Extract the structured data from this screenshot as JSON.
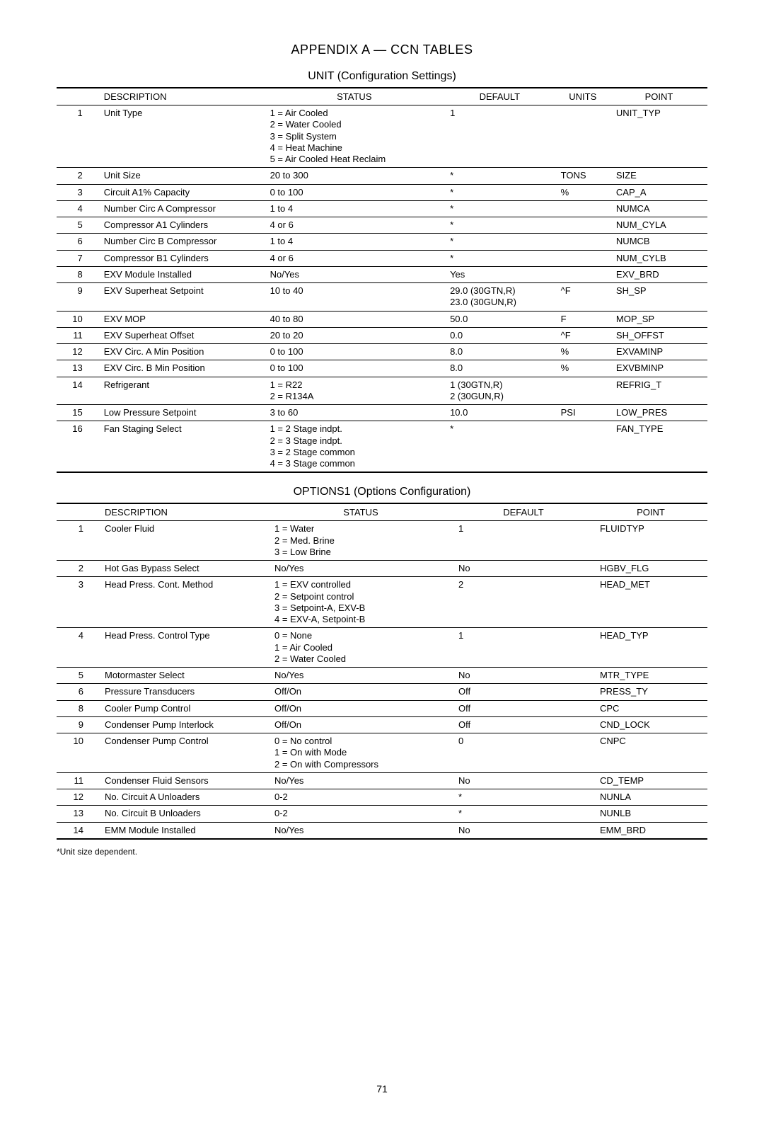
{
  "page_title": "APPENDIX A — CCN TABLES",
  "page_number": "71",
  "footnote": "*Unit size dependent.",
  "table1": {
    "title": "UNIT (Configuration Settings)",
    "headers": {
      "idx": "",
      "desc": "DESCRIPTION",
      "status": "STATUS",
      "def": "DEFAULT",
      "units": "UNITS",
      "point": "POINT"
    },
    "rows": [
      {
        "idx": "1",
        "desc": "Unit Type",
        "status": "1 = Air Cooled\n2 = Water Cooled\n3 = Split System\n4 = Heat Machine\n5 = Air Cooled Heat Reclaim",
        "def": "1",
        "units": "",
        "point": "UNIT_TYP"
      },
      {
        "idx": "2",
        "desc": "Unit Size",
        "status": "20 to 300",
        "def": "*",
        "units": "TONS",
        "point": "SIZE"
      },
      {
        "idx": "3",
        "desc": "Circuit A1% Capacity",
        "status": "0 to 100",
        "def": "*",
        "units": "%",
        "point": "CAP_A"
      },
      {
        "idx": "4",
        "desc": "Number Circ A Compressor",
        "status": "1 to 4",
        "def": "*",
        "units": "",
        "point": "NUMCA"
      },
      {
        "idx": "5",
        "desc": "Compressor A1 Cylinders",
        "status": "4 or 6",
        "def": "*",
        "units": "",
        "point": "NUM_CYLA"
      },
      {
        "idx": "6",
        "desc": "Number Circ B Compressor",
        "status": "1 to 4",
        "def": "*",
        "units": "",
        "point": "NUMCB"
      },
      {
        "idx": "7",
        "desc": "Compressor B1 Cylinders",
        "status": "4 or 6",
        "def": "*",
        "units": "",
        "point": "NUM_CYLB"
      },
      {
        "idx": "8",
        "desc": "EXV Module Installed",
        "status": "No/Yes",
        "def": "Yes",
        "units": "",
        "point": "EXV_BRD"
      },
      {
        "idx": "9",
        "desc": "EXV Superheat Setpoint",
        "status": "10 to 40",
        "def": "29.0 (30GTN,R)\n23.0 (30GUN,R)",
        "units": "^F",
        "point": "SH_SP"
      },
      {
        "idx": "10",
        "desc": "EXV MOP",
        "status": "40 to 80",
        "def": "50.0",
        "units": "F",
        "point": "MOP_SP"
      },
      {
        "idx": "11",
        "desc": "EXV Superheat Offset",
        "status": "  20 to 20",
        "def": "0.0",
        "units": "^F",
        "point": "SH_OFFST"
      },
      {
        "idx": "12",
        "desc": "EXV Circ. A Min Position",
        "status": "0 to 100",
        "def": "8.0",
        "units": "%",
        "point": "EXVAMINP"
      },
      {
        "idx": "13",
        "desc": "EXV Circ. B Min Position",
        "status": "0 to 100",
        "def": "8.0",
        "units": "%",
        "point": "EXVBMINP"
      },
      {
        "idx": "14",
        "desc": "Refrigerant",
        "status": "1 = R22\n2 = R134A",
        "def": "1 (30GTN,R)\n2 (30GUN,R)",
        "units": "",
        "point": "REFRIG_T"
      },
      {
        "idx": "15",
        "desc": "Low Pressure Setpoint",
        "status": "3 to 60",
        "def": "10.0",
        "units": "PSI",
        "point": "LOW_PRES"
      },
      {
        "idx": "16",
        "desc": "Fan Staging Select",
        "status": "1 = 2 Stage indpt.\n2 = 3 Stage indpt.\n3 = 2 Stage common\n4 = 3 Stage common",
        "def": "*",
        "units": "",
        "point": "FAN_TYPE"
      }
    ]
  },
  "table2": {
    "title": "OPTIONS1 (Options Configuration)",
    "headers": {
      "idx": "",
      "desc": "DESCRIPTION",
      "status": "STATUS",
      "def": "DEFAULT",
      "point": "POINT"
    },
    "rows": [
      {
        "idx": "1",
        "desc": "Cooler Fluid",
        "status": "1 = Water\n2 = Med. Brine\n3 = Low Brine",
        "def": "1",
        "point": "FLUIDTYP"
      },
      {
        "idx": "2",
        "desc": "Hot Gas Bypass Select",
        "status": "No/Yes",
        "def": "No",
        "point": "HGBV_FLG"
      },
      {
        "idx": "3",
        "desc": "Head Press. Cont. Method",
        "status": "1 = EXV controlled\n2 = Setpoint control\n3 = Setpoint-A, EXV-B\n4 = EXV-A, Setpoint-B",
        "def": "2",
        "point": "HEAD_MET"
      },
      {
        "idx": "4",
        "desc": "Head Press. Control Type",
        "status": "0 = None\n1 = Air Cooled\n2 = Water Cooled",
        "def": "1",
        "point": "HEAD_TYP"
      },
      {
        "idx": "5",
        "desc": "Motormaster Select",
        "status": "No/Yes",
        "def": "No",
        "point": "MTR_TYPE"
      },
      {
        "idx": "6",
        "desc": "Pressure Transducers",
        "status": "Off/On",
        "def": "Off",
        "point": "PRESS_TY"
      },
      {
        "idx": "8",
        "desc": "Cooler Pump Control",
        "status": "Off/On",
        "def": "Off",
        "point": "CPC"
      },
      {
        "idx": "9",
        "desc": "Condenser Pump Interlock",
        "status": "Off/On",
        "def": "Off",
        "point": "CND_LOCK"
      },
      {
        "idx": "10",
        "desc": "Condenser Pump Control",
        "status": "0 = No control\n1 = On with Mode\n2 = On with Compressors",
        "def": "0",
        "point": "CNPC"
      },
      {
        "idx": "11",
        "desc": "Condenser Fluid Sensors",
        "status": "No/Yes",
        "def": "No",
        "point": "CD_TEMP"
      },
      {
        "idx": "12",
        "desc": "No. Circuit A Unloaders",
        "status": "0-2",
        "def": "*",
        "point": "NUNLA"
      },
      {
        "idx": "13",
        "desc": "No. Circuit B Unloaders",
        "status": "0-2",
        "def": "*",
        "point": "NUNLB"
      },
      {
        "idx": "14",
        "desc": "EMM Module Installed",
        "status": "No/Yes",
        "def": "No",
        "point": "EMM_BRD"
      }
    ]
  }
}
